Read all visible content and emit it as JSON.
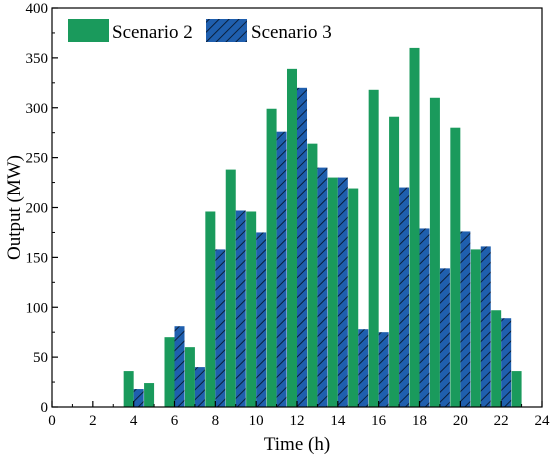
{
  "chart_data": {
    "type": "bar",
    "title": "",
    "xlabel": "Time (h)",
    "ylabel": "Output (MW)",
    "xlim": [
      0,
      24
    ],
    "ylim": [
      0,
      400
    ],
    "xticks": [
      0,
      2,
      4,
      6,
      8,
      10,
      12,
      14,
      16,
      18,
      20,
      22,
      24
    ],
    "yticks": [
      0,
      50,
      100,
      150,
      200,
      250,
      300,
      350,
      400
    ],
    "legend_position": "top-left",
    "grid": false,
    "categories": [
      4,
      5,
      6,
      7,
      8,
      9,
      10,
      11,
      12,
      13,
      14,
      15,
      16,
      17,
      18,
      19,
      20,
      21,
      22,
      23
    ],
    "series": [
      {
        "name": "Scenario 2",
        "color": "#1a9a5c",
        "pattern": "solid",
        "values": [
          36,
          24,
          70,
          60,
          196,
          238,
          196,
          299,
          339,
          264,
          230,
          219,
          318,
          291,
          360,
          310,
          280,
          158,
          97,
          36
        ]
      },
      {
        "name": "Scenario 3",
        "color": "#1f5fae",
        "pattern": "hatched",
        "values": [
          18,
          null,
          81,
          40,
          158,
          197,
          175,
          276,
          320,
          240,
          230,
          78,
          75,
          220,
          179,
          139,
          176,
          161,
          89,
          null
        ]
      }
    ]
  }
}
